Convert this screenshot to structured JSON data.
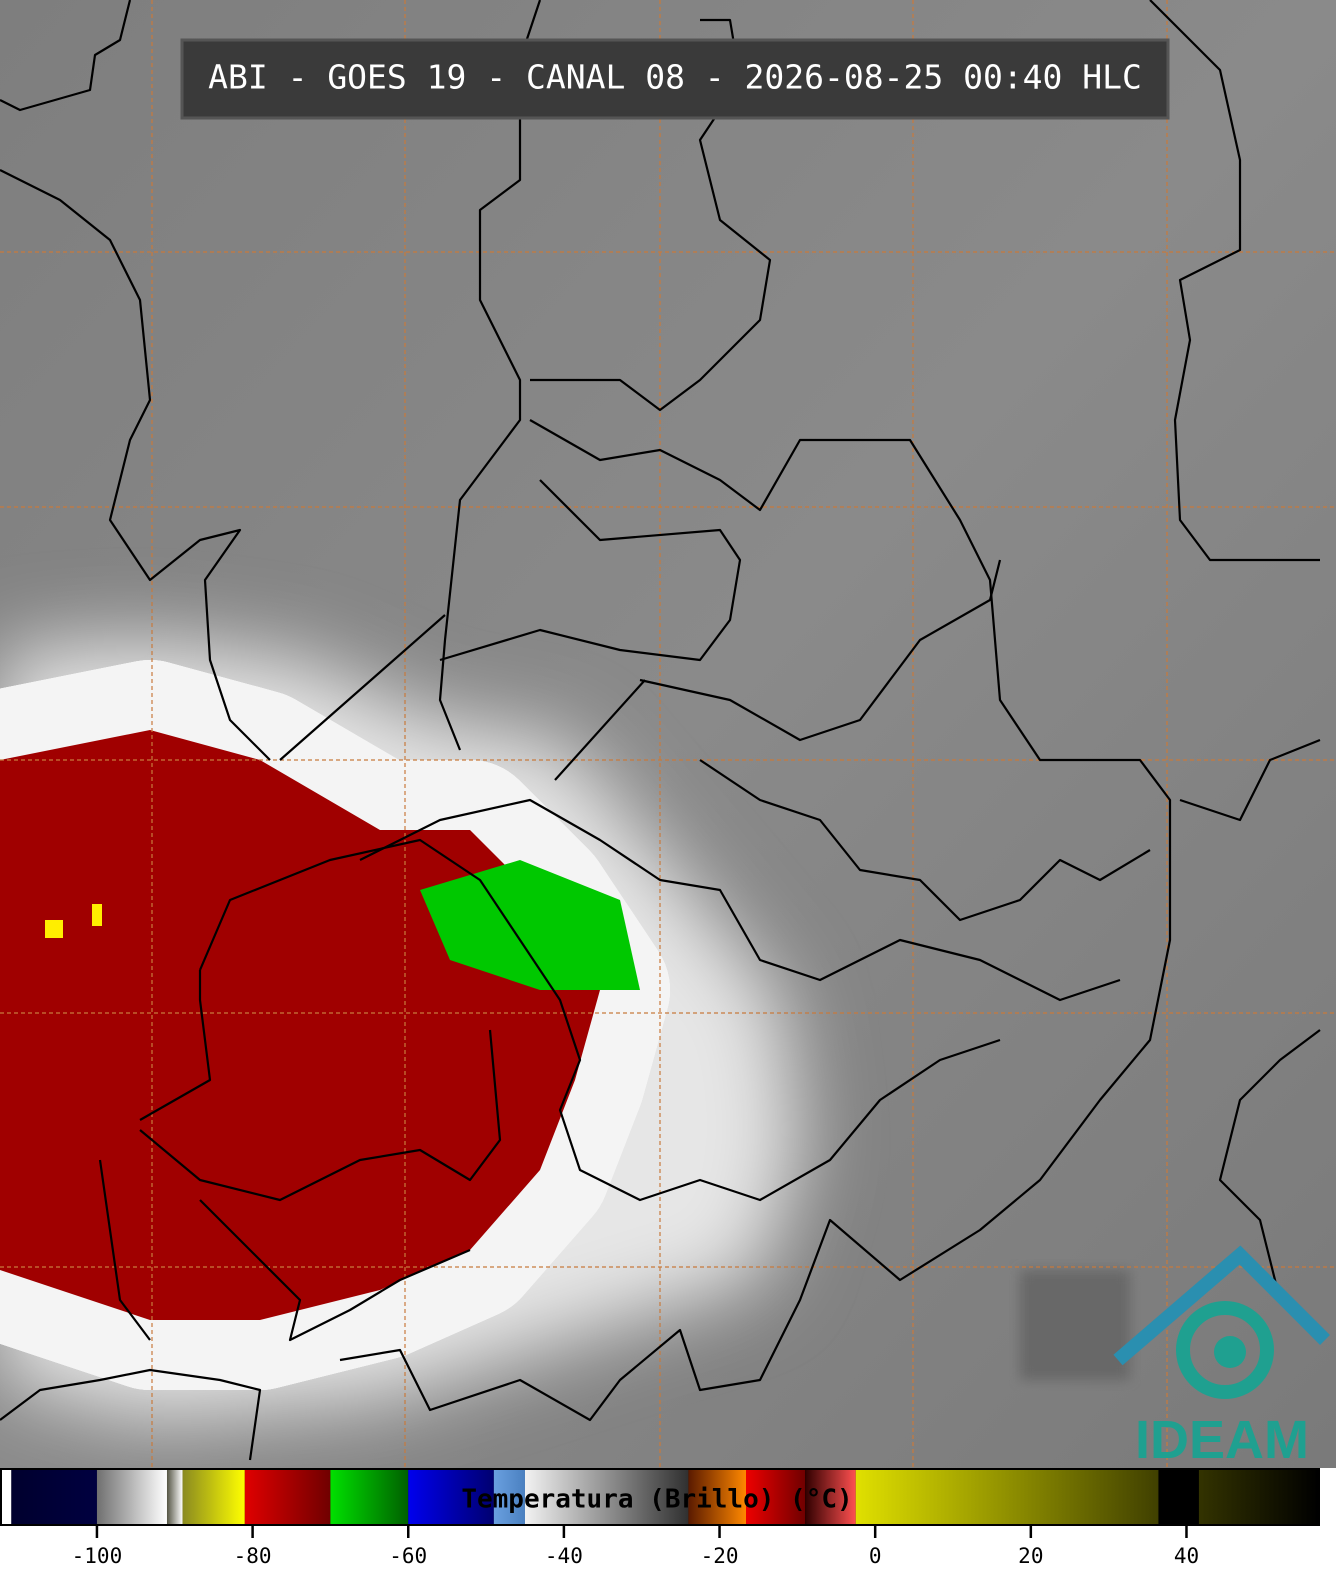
{
  "title": "ABI - GOES 19 - CANAL 08 - 2026-08-25 00:40 HLC",
  "logo": "IDEAM",
  "colorbar": {
    "label": "Temperatura (Brillo) (°C)",
    "xlim": [
      -112.2,
      56.9
    ],
    "xticks": [
      -100,
      -80,
      -60,
      -40,
      -20,
      0,
      20,
      40
    ],
    "segments": [
      {
        "from": -112.2,
        "to": -111,
        "colors": [
          "#ffffff",
          "#ffffff"
        ]
      },
      {
        "from": -111,
        "to": -100,
        "colors": [
          "#00002e",
          "#000040"
        ]
      },
      {
        "from": -100,
        "to": -91,
        "colors": [
          "#707070",
          "#ffffff"
        ]
      },
      {
        "from": -91,
        "to": -89,
        "colors": [
          "#555544",
          "#ffffff"
        ]
      },
      {
        "from": -89,
        "to": -81,
        "colors": [
          "#8a8a20",
          "#ffff00"
        ]
      },
      {
        "from": -81,
        "to": -70,
        "colors": [
          "#e00000",
          "#700000"
        ]
      },
      {
        "from": -70,
        "to": -60,
        "colors": [
          "#00e000",
          "#006000"
        ]
      },
      {
        "from": -60,
        "to": -49,
        "colors": [
          "#0000ee",
          "#000070"
        ]
      },
      {
        "from": -49,
        "to": -45,
        "colors": [
          "#6aa0e0",
          "#4a80c0"
        ]
      },
      {
        "from": -45,
        "to": -24,
        "colors": [
          "#f2f2f2",
          "#303030"
        ]
      },
      {
        "from": -24,
        "to": -16.6,
        "colors": [
          "#5a1a00",
          "#ff8800"
        ]
      },
      {
        "from": -16.6,
        "to": -9,
        "colors": [
          "#ee0000",
          "#700000"
        ]
      },
      {
        "from": -9,
        "to": -2.5,
        "colors": [
          "#300000",
          "#ff5050"
        ]
      },
      {
        "from": -2.5,
        "to": 36.4,
        "colors": [
          "#e0e000",
          "#404000"
        ]
      },
      {
        "from": 36.4,
        "to": 41.6,
        "colors": [
          "#000000",
          "#000000"
        ]
      },
      {
        "from": 41.6,
        "to": 56.9,
        "colors": [
          "#333300",
          "#000000"
        ]
      }
    ]
  }
}
